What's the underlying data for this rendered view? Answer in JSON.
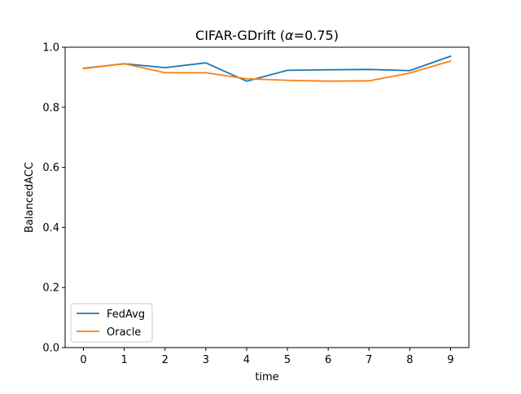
{
  "chart_data": {
    "type": "line",
    "title_prefix": "CIFAR-GDrift (",
    "title_symbol": "α",
    "title_suffix": "=0.75)",
    "xlabel": "time",
    "ylabel": "BalancedACC",
    "x": [
      0,
      1,
      2,
      3,
      4,
      5,
      6,
      7,
      8,
      9
    ],
    "xlim": [
      -0.45,
      9.45
    ],
    "ylim": [
      0.0,
      1.0
    ],
    "x_ticks": [
      0,
      1,
      2,
      3,
      4,
      5,
      6,
      7,
      8,
      9
    ],
    "y_ticks": [
      0.0,
      0.2,
      0.4,
      0.6,
      0.8,
      1.0
    ],
    "x_tick_labels": [
      "0",
      "1",
      "2",
      "3",
      "4",
      "5",
      "6",
      "7",
      "8",
      "9"
    ],
    "y_tick_labels": [
      "0.0",
      "0.2",
      "0.4",
      "0.6",
      "0.8",
      "1.0"
    ],
    "grid": false,
    "legend_position": "lower-left",
    "series": [
      {
        "name": "FedAvg",
        "color": "#1f77b4",
        "values": [
          0.93,
          0.945,
          0.932,
          0.948,
          0.887,
          0.923,
          0.925,
          0.926,
          0.922,
          0.97
        ]
      },
      {
        "name": "Oracle",
        "color": "#ff7f0e",
        "values": [
          0.929,
          0.945,
          0.915,
          0.915,
          0.895,
          0.89,
          0.887,
          0.888,
          0.914,
          0.954
        ]
      }
    ]
  }
}
